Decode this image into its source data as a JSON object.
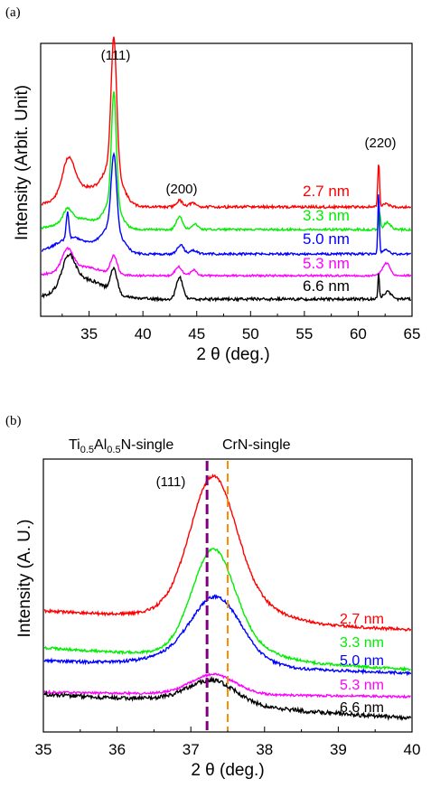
{
  "panel_labels": [
    "(a)",
    "(b)"
  ],
  "chart_data": [
    {
      "type": "line",
      "panel": "(a)",
      "xlabel": "2 θ (deg.)",
      "ylabel": "Intensity (Arbit. Unit)",
      "xlim": [
        30.5,
        65
      ],
      "xticks": [
        35,
        40,
        45,
        50,
        55,
        60,
        65
      ],
      "xtick_labels": [
        "35",
        "40",
        "45",
        "50",
        "55",
        "60",
        "65"
      ],
      "annotations": [
        "(111)",
        "(200)",
        "(220)"
      ],
      "series": [
        {
          "name": "2.7 nm",
          "color": "#ff0000",
          "baseline": 229,
          "noise": 1.4,
          "peaks": [
            [
              33.1,
              0.55,
              38
            ],
            [
              34.5,
              2.0,
              22
            ],
            [
              37.3,
              0.25,
              140
            ],
            [
              37.2,
              0.8,
              40
            ],
            [
              43.4,
              0.3,
              7
            ],
            [
              44.6,
              0.35,
              4
            ],
            [
              61.9,
              0.08,
              50
            ],
            [
              62.6,
              0.25,
              4
            ]
          ]
        },
        {
          "name": "3.3 nm",
          "color": "#00ee00",
          "baseline": 254,
          "noise": 1.2,
          "peaks": [
            [
              33.0,
              0.4,
              14
            ],
            [
              34.2,
              1.8,
              12
            ],
            [
              37.3,
              0.22,
              120
            ],
            [
              37.2,
              0.7,
              30
            ],
            [
              43.4,
              0.3,
              14
            ],
            [
              44.8,
              0.3,
              6
            ],
            [
              62.0,
              0.08,
              18
            ],
            [
              62.7,
              0.3,
              8
            ]
          ]
        },
        {
          "name": "5.0 nm",
          "color": "#0000ff",
          "baseline": 281,
          "noise": 1.2,
          "peaks": [
            [
              33.0,
              0.12,
              30
            ],
            [
              33.5,
              1.6,
              18
            ],
            [
              37.3,
              0.25,
              80
            ],
            [
              37.1,
              0.9,
              30
            ],
            [
              43.5,
              0.3,
              10
            ],
            [
              44.7,
              0.3,
              4
            ],
            [
              61.9,
              0.07,
              68
            ],
            [
              62.6,
              0.3,
              5
            ]
          ]
        },
        {
          "name": "5.3 nm",
          "color": "#ff00ff",
          "baseline": 305,
          "noise": 1.1,
          "peaks": [
            [
              33.0,
              0.5,
              22
            ],
            [
              34.2,
              1.8,
              10
            ],
            [
              37.3,
              0.3,
              20
            ],
            [
              43.3,
              0.3,
              10
            ],
            [
              44.7,
              0.3,
              6
            ],
            [
              62.6,
              0.35,
              14
            ]
          ]
        },
        {
          "name": "6.6 nm",
          "color": "#000000",
          "baseline": 331,
          "noise": 1.6,
          "peaks": [
            [
              33.1,
              0.6,
              32
            ],
            [
              34.5,
              2.0,
              22
            ],
            [
              37.3,
              0.3,
              26
            ],
            [
              43.4,
              0.3,
              24
            ],
            [
              61.9,
              0.07,
              28
            ],
            [
              62.7,
              0.35,
              8
            ]
          ]
        }
      ]
    },
    {
      "type": "line",
      "panel": "(b)",
      "xlabel": "2 θ (deg.)",
      "ylabel": "Intensity (A. U.)",
      "xlim": [
        35,
        40
      ],
      "xticks": [
        35,
        36,
        37,
        38,
        39,
        40
      ],
      "xtick_labels": [
        "35",
        "36",
        "37",
        "38",
        "39",
        "40"
      ],
      "annotations": [
        "(111)"
      ],
      "reference_lines": [
        {
          "label_main": "Ti",
          "label_sub1": "0.5",
          "label_mid": "Al",
          "label_sub2": "0.5",
          "label_end": "N-single",
          "x": 37.22,
          "color": "#800080"
        },
        {
          "label": "CrN-single",
          "x": 37.5,
          "color": "#ff8c00"
        }
      ],
      "series": [
        {
          "name": "2.7 nm",
          "color": "#ff0000",
          "start": 676,
          "end": 697,
          "noise": 1.6,
          "peaks": [
            [
              37.3,
              0.3,
              130
            ],
            [
              37.45,
              0.55,
              30
            ]
          ]
        },
        {
          "name": "3.3 nm",
          "color": "#00ee00",
          "start": 717,
          "end": 741,
          "noise": 1.4,
          "peaks": [
            [
              37.3,
              0.28,
              102
            ],
            [
              37.5,
              0.5,
              20
            ]
          ]
        },
        {
          "name": "5.0 nm",
          "color": "#0000ff",
          "start": 731,
          "end": 745,
          "noise": 1.6,
          "peaks": [
            [
              37.35,
              0.32,
              60
            ],
            [
              37.2,
              0.55,
              18
            ]
          ]
        },
        {
          "name": "5.3 nm",
          "color": "#ff00ff",
          "start": 766,
          "end": 771,
          "noise": 1.2,
          "peaks": [
            [
              37.3,
              0.3,
              22
            ]
          ]
        },
        {
          "name": "6.6 nm",
          "color": "#000000",
          "start": 768,
          "end": 795,
          "noise": 2.2,
          "peaks": [
            [
              37.3,
              0.3,
              22
            ],
            [
              37.1,
              0.6,
              6
            ]
          ]
        }
      ]
    }
  ]
}
